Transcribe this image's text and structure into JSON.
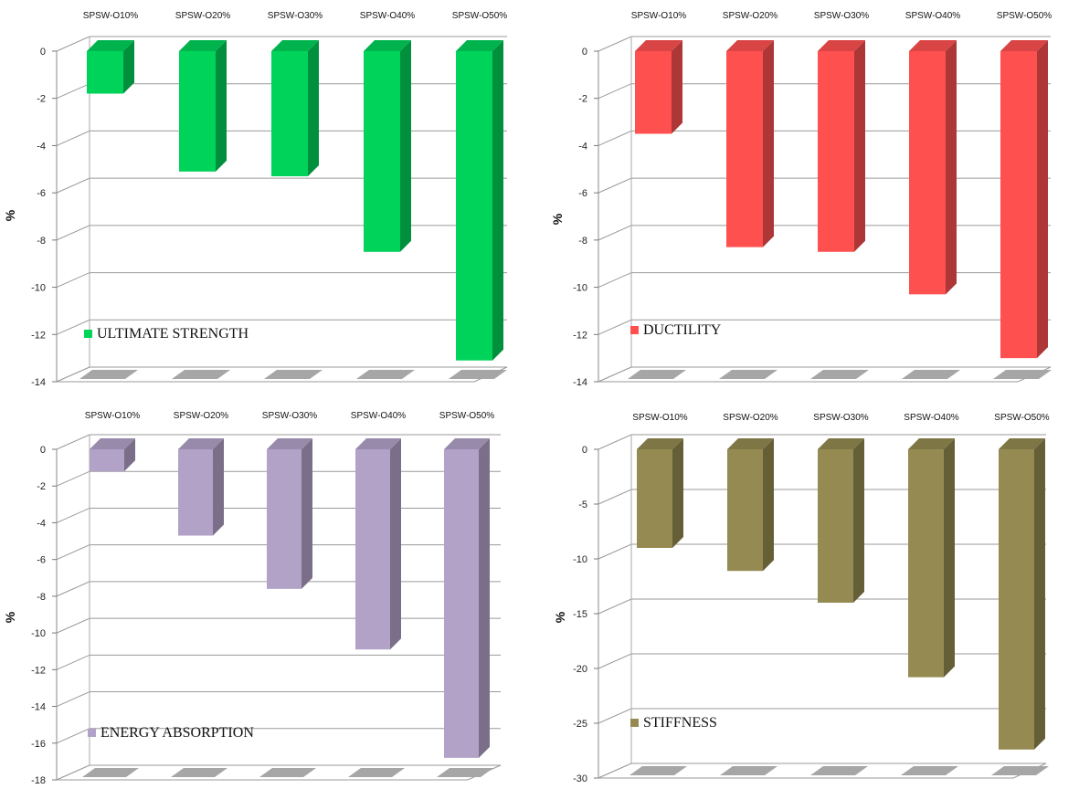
{
  "chart_data": [
    {
      "type": "bar",
      "categories": [
        "SPSW-O10%",
        "SPSW-O20%",
        "SPSW-O30%",
        "SPSW-O40%",
        "SPSW-O50%"
      ],
      "series": [
        {
          "name": "ULTIMATE STRENGTH",
          "values": [
            -1.8,
            -5.1,
            -5.3,
            -8.5,
            -13.1
          ]
        }
      ],
      "ylabel": "%",
      "ylim": [
        -14,
        0
      ],
      "yticks": [
        0,
        -2,
        -4,
        -6,
        -8,
        -10,
        -12,
        -14
      ],
      "color": "#00d35a",
      "legend_position": "bottom-left",
      "grid": true
    },
    {
      "type": "bar",
      "categories": [
        "SPSW-O10%",
        "SPSW-O20%",
        "SPSW-O30%",
        "SPSW-O40%",
        "SPSW-O50%"
      ],
      "series": [
        {
          "name": "DUCTILITY",
          "values": [
            -3.5,
            -8.3,
            -8.5,
            -10.3,
            -13.0
          ]
        }
      ],
      "ylabel": "%",
      "ylim": [
        -14,
        0
      ],
      "yticks": [
        0,
        -2,
        -4,
        -6,
        -8,
        -10,
        -12,
        -14
      ],
      "color": "#ff5050",
      "legend_position": "bottom-left",
      "grid": true
    },
    {
      "type": "bar",
      "categories": [
        "SPSW-O10%",
        "SPSW-O20%",
        "SPSW-O30%",
        "SPSW-O40%",
        "SPSW-O50%"
      ],
      "series": [
        {
          "name": "ENERGY ABSORPTION",
          "values": [
            -1.2,
            -4.7,
            -7.6,
            -10.9,
            -16.8
          ]
        }
      ],
      "ylabel": "%",
      "ylim": [
        -18,
        0
      ],
      "yticks": [
        0,
        -2,
        -4,
        -6,
        -8,
        -10,
        -12,
        -14,
        -16,
        -18
      ],
      "color": "#b3a2c8",
      "legend_position": "bottom-left",
      "grid": true
    },
    {
      "type": "bar",
      "categories": [
        "SPSW-O10%",
        "SPSW-O20%",
        "SPSW-O30%",
        "SPSW-O40%",
        "SPSW-O50%"
      ],
      "series": [
        {
          "name": "STIFFNESS",
          "values": [
            -9.0,
            -11.1,
            -14.0,
            -20.8,
            -27.4
          ]
        }
      ],
      "ylabel": "%",
      "ylim": [
        -30,
        0
      ],
      "yticks": [
        0,
        -5,
        -10,
        -15,
        -20,
        -25,
        -30
      ],
      "color": "#958b52",
      "legend_position": "bottom-left",
      "grid": true
    }
  ]
}
